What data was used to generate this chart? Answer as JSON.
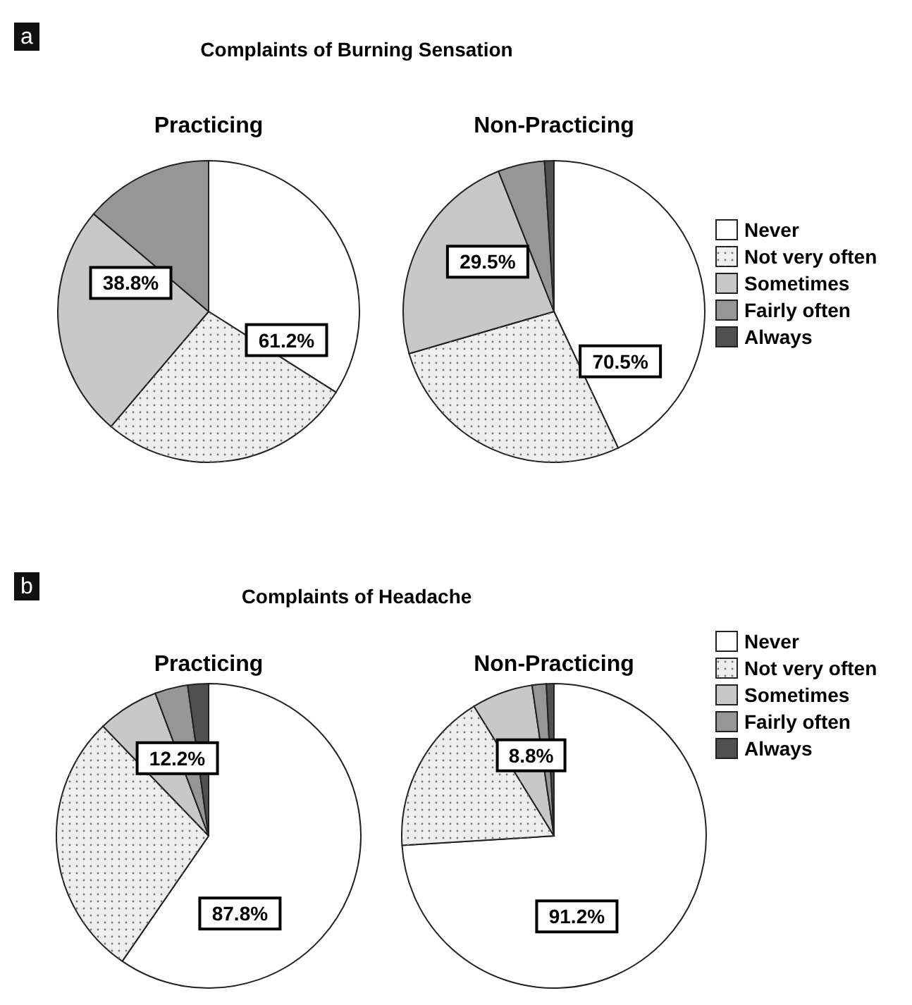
{
  "chart_data": [
    {
      "type": "pie",
      "title": "Practicing",
      "subtitle": "Complaints of Burning Sensation",
      "categories": [
        null,
        null,
        null,
        null,
        null
      ],
      "values": [
        34.0,
        27.2,
        25.0,
        13.8,
        0
      ],
      "colors": [
        "#ffffff",
        "#eeeeee",
        "#c8c8c8",
        "#969696",
        "#505050"
      ],
      "annotations": [
        "61.2%",
        "38.8%",
        "a"
      ]
    },
    {
      "type": "pie",
      "title": "Non-Practicing",
      "categories": [
        "Never",
        "Not very often",
        "Sometimes",
        "Fairly often",
        "Always"
      ],
      "values": [
        43.0,
        27.5,
        23.5,
        5.0,
        1.0
      ],
      "colors": [
        "#ffffff",
        "#eeeeee",
        "#c8c8c8",
        "#969696",
        "#505050"
      ],
      "annotations": [
        "70.5%",
        "29.5%"
      ],
      "legend": "right"
    },
    {
      "type": "pie",
      "title": "Practicing",
      "subtitle": "Complaints of Headache",
      "categories": [
        null,
        null,
        null,
        null,
        null
      ],
      "values": [
        59.6,
        28.2,
        6.5,
        3.5,
        2.2
      ],
      "colors": [
        "#ffffff",
        "#eeeeee",
        "#c8c8c8",
        "#969696",
        "#505050"
      ],
      "annotations": [
        "87.8%",
        "12.2%",
        "b"
      ]
    },
    {
      "type": "pie",
      "title": "Non-Practicing",
      "categories": [
        "Never",
        "Not very often",
        "Sometimes",
        "Fairly often",
        "Always"
      ],
      "values": [
        74.0,
        17.2,
        6.5,
        1.5,
        0.8
      ],
      "colors": [
        "#ffffff",
        "#eeeeee",
        "#c8c8c8",
        "#969696",
        "#505050"
      ],
      "annotations": [
        "91.2%",
        "8.8%"
      ],
      "legend": "right"
    }
  ]
}
